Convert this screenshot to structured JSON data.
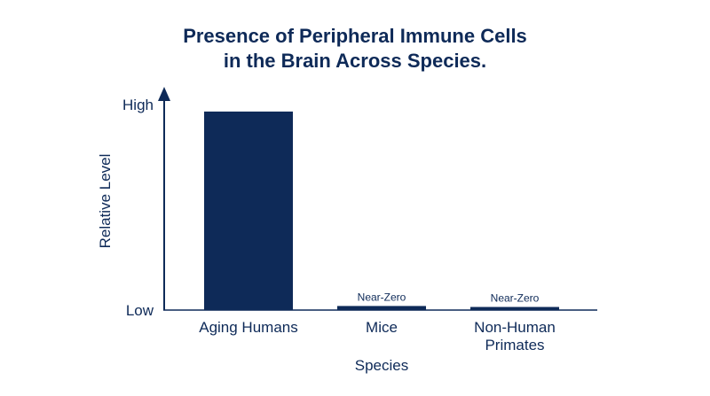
{
  "chart_data": {
    "type": "bar",
    "title": [
      "Presence of Peripheral Immune Cells",
      "in the Brain Across Species."
    ],
    "xlabel": "Species",
    "ylabel": "Relative Level",
    "y_tick_labels": [
      "High",
      "Low"
    ],
    "categories": [
      [
        "Aging Humans"
      ],
      [
        "Mice"
      ],
      [
        "Non-Human",
        "Primates"
      ]
    ],
    "values": [
      0.97,
      0.02,
      0.015
    ],
    "ylim": [
      0,
      1
    ],
    "data_labels": [
      "",
      "Near-Zero",
      "Near-Zero"
    ],
    "grid": false,
    "legend": "none",
    "colors": {
      "bar": "#0e2a58",
      "axis": "#0e2a58",
      "text": "#0e2a58"
    }
  }
}
